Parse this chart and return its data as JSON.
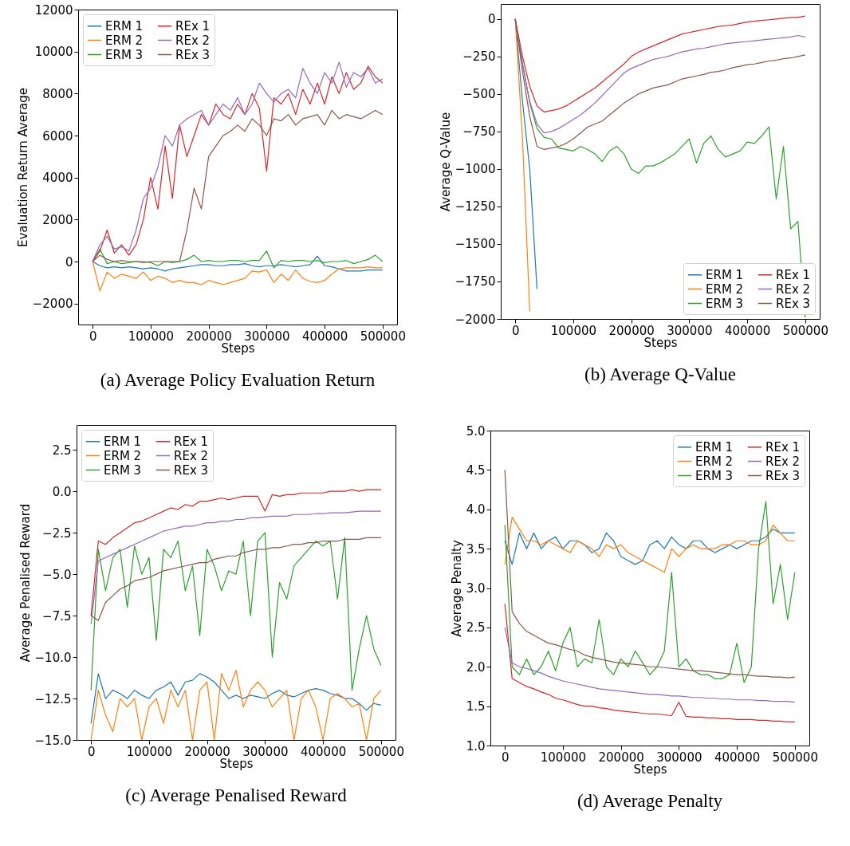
{
  "chart_data": [
    {
      "type": "line",
      "title": "(a) Average Policy Evaluation Return",
      "xlabel": "Steps",
      "ylabel": "Evaluation Return Average",
      "xlim": [
        -25000,
        525000
      ],
      "xticks": [
        0,
        100000,
        200000,
        300000,
        400000,
        500000
      ],
      "ylim": [
        -3000,
        12000
      ],
      "yticks": [
        -2000,
        0,
        2000,
        4000,
        6000,
        8000,
        10000,
        12000
      ],
      "legend": "top left",
      "x": [
        0,
        12500,
        25000,
        37500,
        50000,
        62500,
        75000,
        87500,
        100000,
        112500,
        125000,
        137500,
        150000,
        162500,
        175000,
        187500,
        200000,
        212500,
        225000,
        237500,
        250000,
        262500,
        275000,
        287500,
        300000,
        312500,
        325000,
        337500,
        350000,
        362500,
        375000,
        387500,
        400000,
        412500,
        425000,
        437500,
        450000,
        462500,
        475000,
        487500,
        500000
      ],
      "series": [
        {
          "name": "ERM 1",
          "color": "#1f77b4",
          "values": [
            0,
            -200,
            -300,
            -250,
            -300,
            -250,
            -300,
            -350,
            -300,
            -350,
            -450,
            -350,
            -300,
            -250,
            -200,
            -150,
            -150,
            -200,
            -200,
            -150,
            -150,
            -100,
            -200,
            -250,
            -200,
            -200,
            -150,
            -200,
            -250,
            -200,
            -150,
            250,
            -200,
            -250,
            -350,
            -450,
            -450,
            -450,
            -400,
            -400,
            -400
          ]
        },
        {
          "name": "ERM 2",
          "color": "#ff7f0e",
          "values": [
            0,
            -1400,
            -500,
            -800,
            -600,
            -700,
            -800,
            -500,
            -900,
            -700,
            -800,
            -1000,
            -900,
            -1000,
            -1000,
            -1100,
            -900,
            -1000,
            -1100,
            -1000,
            -900,
            -800,
            -450,
            -500,
            -400,
            -1000,
            -600,
            -900,
            -400,
            -800,
            -950,
            -1000,
            -900,
            -600,
            -350,
            -300,
            -300,
            -300,
            -250,
            -300,
            -300
          ]
        },
        {
          "name": "ERM 3",
          "color": "#2ca02c",
          "values": [
            0,
            600,
            -100,
            0,
            -100,
            -50,
            0,
            0,
            -50,
            -200,
            0,
            -50,
            0,
            100,
            300,
            0,
            50,
            0,
            0,
            50,
            50,
            0,
            50,
            50,
            500,
            -300,
            50,
            0,
            50,
            50,
            0,
            50,
            -50,
            0,
            0,
            50,
            -100,
            0,
            100,
            300,
            0
          ]
        },
        {
          "name": "REx 1",
          "color": "#d62728",
          "values": [
            0,
            500,
            1500,
            400,
            800,
            300,
            800,
            2000,
            4000,
            2500,
            5500,
            3000,
            6500,
            5000,
            6000,
            7000,
            6500,
            7500,
            7000,
            6800,
            7500,
            7000,
            8000,
            7300,
            4300,
            7800,
            7500,
            8000,
            7000,
            8200,
            7500,
            8500,
            7500,
            8800,
            8000,
            9000,
            8200,
            8500,
            9300,
            8800,
            8500
          ]
        },
        {
          "name": "REx 2",
          "color": "#9467bd",
          "values": [
            0,
            800,
            1200,
            600,
            700,
            500,
            1500,
            3000,
            3500,
            4500,
            6000,
            5500,
            6500,
            6800,
            7000,
            7200,
            6500,
            7000,
            7500,
            7200,
            7800,
            7000,
            7500,
            8500,
            8000,
            7600,
            8000,
            8200,
            7800,
            9200,
            8500,
            8000,
            9000,
            8500,
            9500,
            8300,
            9000,
            8800,
            9200,
            8500,
            8700
          ]
        },
        {
          "name": "REx 3",
          "color": "#8c564b",
          "values": [
            0,
            300,
            100,
            0,
            50,
            0,
            0,
            -50,
            0,
            0,
            0,
            0,
            0,
            1500,
            3500,
            2500,
            5000,
            5500,
            6000,
            6200,
            6500,
            6200,
            6800,
            6500,
            6000,
            6800,
            6700,
            7000,
            6500,
            6800,
            6900,
            7000,
            6500,
            7200,
            6800,
            7000,
            6900,
            6800,
            7000,
            7200,
            7000
          ]
        }
      ]
    },
    {
      "type": "line",
      "title": "(b) Average Q-Value",
      "xlabel": "Steps",
      "ylabel": "Average Q-Value",
      "xlim": [
        -25000,
        525000
      ],
      "xticks": [
        0,
        100000,
        200000,
        300000,
        400000,
        500000
      ],
      "ylim": [
        -2000,
        100
      ],
      "yticks": [
        -2000,
        -1750,
        -1500,
        -1250,
        -1000,
        -750,
        -500,
        -250,
        0
      ],
      "legend": "bottom right",
      "x": [
        0,
        12500,
        25000,
        37500,
        50000,
        62500,
        75000,
        87500,
        100000,
        112500,
        125000,
        137500,
        150000,
        162500,
        175000,
        187500,
        200000,
        212500,
        225000,
        237500,
        250000,
        262500,
        275000,
        287500,
        300000,
        312500,
        325000,
        337500,
        350000,
        362500,
        375000,
        387500,
        400000,
        412500,
        425000,
        437500,
        450000,
        462500,
        475000,
        487500,
        500000
      ],
      "series": [
        {
          "name": "ERM 1",
          "color": "#1f77b4",
          "values": [
            0,
            -550,
            -1000,
            -1800,
            null,
            null,
            null,
            null,
            null,
            null,
            null,
            null,
            null,
            null,
            null,
            null,
            null,
            null,
            null,
            null,
            null,
            null,
            null,
            null,
            null,
            null,
            null,
            null,
            null,
            null,
            null,
            null,
            null,
            null,
            null,
            null,
            null,
            null,
            null,
            null,
            null
          ]
        },
        {
          "name": "ERM 2",
          "color": "#ff7f0e",
          "values": [
            0,
            -800,
            -1950,
            null,
            null,
            null,
            null,
            null,
            null,
            null,
            null,
            null,
            null,
            null,
            null,
            null,
            null,
            null,
            null,
            null,
            null,
            null,
            null,
            null,
            null,
            null,
            null,
            null,
            null,
            null,
            null,
            null,
            null,
            null,
            null,
            null,
            null,
            null,
            null,
            null,
            null
          ]
        },
        {
          "name": "ERM 3",
          "color": "#2ca02c",
          "values": [
            0,
            -300,
            -560,
            -730,
            -790,
            -800,
            -860,
            -870,
            -880,
            -850,
            -870,
            -900,
            -950,
            -880,
            -850,
            -900,
            -1000,
            -1030,
            -980,
            -980,
            -960,
            -930,
            -900,
            -850,
            -800,
            -960,
            -830,
            -780,
            -870,
            -920,
            -900,
            -880,
            -820,
            -830,
            -780,
            -720,
            -1200,
            -850,
            -1400,
            -1350,
            -1990
          ]
        },
        {
          "name": "REx 1",
          "color": "#d62728",
          "values": [
            0,
            -250,
            -450,
            -580,
            -620,
            -610,
            -600,
            -580,
            -550,
            -520,
            -490,
            -460,
            -420,
            -380,
            -340,
            -300,
            -250,
            -220,
            -200,
            -180,
            -160,
            -140,
            -120,
            -100,
            -90,
            -80,
            -70,
            -60,
            -50,
            -45,
            -40,
            -30,
            -20,
            -15,
            -10,
            -5,
            0,
            5,
            10,
            10,
            20
          ]
        },
        {
          "name": "REx 2",
          "color": "#9467bd",
          "values": [
            0,
            -300,
            -550,
            -700,
            -760,
            -750,
            -730,
            -700,
            -670,
            -640,
            -600,
            -560,
            -510,
            -460,
            -410,
            -360,
            -330,
            -310,
            -290,
            -270,
            -260,
            -250,
            -235,
            -220,
            -210,
            -200,
            -195,
            -185,
            -175,
            -165,
            -160,
            -155,
            -150,
            -145,
            -140,
            -135,
            -130,
            -125,
            -120,
            -110,
            -120
          ]
        },
        {
          "name": "REx 3",
          "color": "#8c564b",
          "values": [
            0,
            -350,
            -650,
            -850,
            -870,
            -860,
            -850,
            -830,
            -800,
            -760,
            -720,
            -700,
            -680,
            -640,
            -600,
            -560,
            -530,
            -500,
            -480,
            -460,
            -450,
            -440,
            -420,
            -400,
            -390,
            -380,
            -370,
            -355,
            -350,
            -340,
            -325,
            -315,
            -305,
            -300,
            -290,
            -280,
            -275,
            -265,
            -260,
            -250,
            -240
          ]
        }
      ]
    },
    {
      "type": "line",
      "title": "(c) Average Penalised Reward",
      "xlabel": "Steps",
      "ylabel": "Average Penalised Reward",
      "xlim": [
        -25000,
        525000
      ],
      "xticks": [
        0,
        100000,
        200000,
        300000,
        400000,
        500000
      ],
      "ylim": [
        -15,
        4
      ],
      "yticks": [
        {
          "value": -15,
          "label": "−15.0"
        },
        -12.5,
        {
          "value": -10,
          "label": "−10.0"
        },
        -7.5,
        {
          "value": -5,
          "label": "−5.0"
        },
        -2.5,
        {
          "value": 0,
          "label": "0.0"
        },
        2.5
      ],
      "legend": "top left",
      "x": [
        0,
        12500,
        25000,
        37500,
        50000,
        62500,
        75000,
        87500,
        100000,
        112500,
        125000,
        137500,
        150000,
        162500,
        175000,
        187500,
        200000,
        212500,
        225000,
        237500,
        250000,
        262500,
        275000,
        287500,
        300000,
        312500,
        325000,
        337500,
        350000,
        362500,
        375000,
        387500,
        400000,
        412500,
        425000,
        437500,
        450000,
        462500,
        475000,
        487500,
        500000
      ],
      "series": [
        {
          "name": "ERM 1",
          "color": "#1f77b4",
          "values": [
            -14,
            -11,
            -12.5,
            -12,
            -12.2,
            -12.5,
            -12,
            -12.3,
            -12.5,
            -12,
            -11.8,
            -11.5,
            -12.3,
            -11.5,
            -11.4,
            -11,
            -11.2,
            -11.5,
            -12,
            -12.5,
            -12.3,
            -12.5,
            -12.3,
            -12.4,
            -12.5,
            -12.2,
            -12,
            -12.3,
            -12.4,
            -12.2,
            -12,
            -11.9,
            -12,
            -12.2,
            -12.3,
            -12.5,
            -12.5,
            -12.8,
            -13.2,
            -12.8,
            -12.9
          ]
        },
        {
          "name": "ERM 2",
          "color": "#ff7f0e",
          "values": [
            -15,
            -12,
            -13.5,
            -14.5,
            -12.5,
            -13,
            -12.5,
            -15,
            -13,
            -12.5,
            -14,
            -12,
            -13,
            -12,
            -15,
            -12,
            -11.5,
            -15,
            -11,
            -12,
            -10.8,
            -13,
            -12,
            -11.5,
            -12,
            -13,
            -12.5,
            -12,
            -15,
            -12.5,
            -12,
            -13,
            -15,
            -12.5,
            -12.2,
            -12.5,
            -13,
            -12.8,
            -15,
            -12.5,
            -12
          ]
        },
        {
          "name": "ERM 3",
          "color": "#2ca02c",
          "values": [
            -12,
            -3.5,
            -6,
            -4,
            -3.5,
            -7,
            -3.3,
            -5,
            -4,
            -9,
            -3.5,
            -4,
            -3,
            -6,
            -4.5,
            -8.7,
            -3.5,
            -4.5,
            -6,
            -4.8,
            -5,
            -3,
            -7.5,
            -3,
            -2.5,
            -10,
            -5.5,
            -6.5,
            -4.5,
            -4,
            -3.5,
            -3,
            -3.3,
            -3,
            -6.5,
            -2.8,
            -12,
            -9.5,
            -7.5,
            -9.5,
            -10.5
          ]
        },
        {
          "name": "REx 1",
          "color": "#d62728",
          "values": [
            -7.5,
            -3,
            -3.2,
            -2.8,
            -2.5,
            -2.2,
            -1.9,
            -1.8,
            -1.6,
            -1.4,
            -1.2,
            -1,
            -1.1,
            -0.8,
            -0.9,
            -0.6,
            -0.6,
            -0.5,
            -0.4,
            -0.5,
            -0.4,
            -0.3,
            -0.3,
            -0.3,
            -1.2,
            -0.2,
            -0.3,
            -0.2,
            -0.2,
            -0.1,
            -0.1,
            -0.1,
            -0.1,
            0,
            0,
            0,
            0.1,
            0,
            0.1,
            0.1,
            0.1
          ]
        },
        {
          "name": "REx 2",
          "color": "#9467bd",
          "values": [
            -8,
            -4.2,
            -4,
            -3.8,
            -3.6,
            -3.4,
            -3.2,
            -3,
            -2.8,
            -2.6,
            -2.4,
            -2.3,
            -2.2,
            -2.1,
            -2.1,
            -2,
            -1.9,
            -1.9,
            -1.8,
            -1.8,
            -1.7,
            -1.7,
            -1.6,
            -1.6,
            -1.55,
            -1.5,
            -1.5,
            -1.5,
            -1.4,
            -1.4,
            -1.4,
            -1.35,
            -1.35,
            -1.3,
            -1.3,
            -1.3,
            -1.25,
            -1.2,
            -1.2,
            -1.2,
            -1.2
          ]
        },
        {
          "name": "REx 3",
          "color": "#8c564b",
          "values": [
            -7.5,
            -7.8,
            -6.7,
            -6.3,
            -5.9,
            -5.7,
            -5.4,
            -5.3,
            -5.2,
            -5,
            -4.8,
            -4.7,
            -4.6,
            -4.5,
            -4.4,
            -4.3,
            -4.3,
            -4.1,
            -4,
            -3.9,
            -3.9,
            -3.7,
            -3.6,
            -3.5,
            -3.5,
            -3.4,
            -3.4,
            -3.3,
            -3.2,
            -3.2,
            -3.1,
            -3.1,
            -3,
            -3,
            -3,
            -2.9,
            -2.9,
            -2.9,
            -2.8,
            -2.8,
            -2.8
          ]
        }
      ]
    },
    {
      "type": "line",
      "title": "(d) Average Penalty",
      "xlabel": "Steps",
      "ylabel": "Average Penalty",
      "xlim": [
        -25000,
        525000
      ],
      "xticks": [
        0,
        100000,
        200000,
        300000,
        400000,
        500000
      ],
      "ylim": [
        1,
        5
      ],
      "yticks": [
        {
          "value": 1,
          "label": "1.0"
        },
        1.5,
        {
          "value": 2,
          "label": "2.0"
        },
        2.5,
        {
          "value": 3,
          "label": "3.0"
        },
        3.5,
        {
          "value": 4,
          "label": "4.0"
        },
        4.5,
        {
          "value": 5,
          "label": "5.0"
        }
      ],
      "legend": "top right",
      "x": [
        0,
        12500,
        25000,
        37500,
        50000,
        62500,
        75000,
        87500,
        100000,
        112500,
        125000,
        137500,
        150000,
        162500,
        175000,
        187500,
        200000,
        212500,
        225000,
        237500,
        250000,
        262500,
        275000,
        287500,
        300000,
        312500,
        325000,
        337500,
        350000,
        362500,
        375000,
        387500,
        400000,
        412500,
        425000,
        437500,
        450000,
        462500,
        475000,
        487500,
        500000
      ],
      "series": [
        {
          "name": "ERM 1",
          "color": "#1f77b4",
          "values": [
            3.6,
            3.3,
            3.7,
            3.5,
            3.7,
            3.5,
            3.6,
            3.65,
            3.5,
            3.6,
            3.6,
            3.55,
            3.45,
            3.5,
            3.7,
            3.6,
            3.4,
            3.35,
            3.3,
            3.35,
            3.55,
            3.6,
            3.5,
            3.65,
            3.55,
            3.5,
            3.6,
            3.6,
            3.5,
            3.45,
            3.5,
            3.55,
            3.5,
            3.55,
            3.6,
            3.6,
            3.65,
            3.75,
            3.7,
            3.7,
            3.7
          ]
        },
        {
          "name": "ERM 2",
          "color": "#ff7f0e",
          "values": [
            3.3,
            3.9,
            3.75,
            3.6,
            3.6,
            3.55,
            3.6,
            3.55,
            3.5,
            3.45,
            3.6,
            3.55,
            3.5,
            3.4,
            3.55,
            3.5,
            3.55,
            3.45,
            3.4,
            3.35,
            3.3,
            3.25,
            3.2,
            3.5,
            3.4,
            3.5,
            3.55,
            3.5,
            3.5,
            3.5,
            3.55,
            3.55,
            3.6,
            3.6,
            3.55,
            3.55,
            3.6,
            3.8,
            3.7,
            3.6,
            3.6
          ]
        },
        {
          "name": "ERM 3",
          "color": "#2ca02c",
          "values": [
            3.8,
            2,
            1.9,
            2.1,
            1.9,
            2,
            2.2,
            1.95,
            2.3,
            2.5,
            2,
            2.1,
            2.05,
            2.6,
            2,
            1.9,
            2.1,
            2,
            2.2,
            2.05,
            1.9,
            2,
            2.2,
            3.2,
            2,
            2.1,
            1.95,
            1.9,
            1.9,
            1.85,
            1.85,
            1.9,
            2.3,
            1.8,
            2,
            3.5,
            4.1,
            2.8,
            3.3,
            2.6,
            3.2
          ]
        },
        {
          "name": "REx 1",
          "color": "#d62728",
          "values": [
            2.8,
            1.85,
            1.8,
            1.75,
            1.72,
            1.68,
            1.65,
            1.6,
            1.58,
            1.55,
            1.52,
            1.5,
            1.5,
            1.48,
            1.47,
            1.45,
            1.44,
            1.43,
            1.42,
            1.41,
            1.4,
            1.4,
            1.39,
            1.38,
            1.55,
            1.37,
            1.36,
            1.36,
            1.35,
            1.35,
            1.34,
            1.34,
            1.33,
            1.33,
            1.33,
            1.32,
            1.32,
            1.31,
            1.31,
            1.3,
            1.3
          ]
        },
        {
          "name": "REx 2",
          "color": "#9467bd",
          "values": [
            2.5,
            2.05,
            2,
            1.98,
            1.95,
            1.92,
            1.88,
            1.85,
            1.82,
            1.8,
            1.78,
            1.76,
            1.74,
            1.72,
            1.71,
            1.7,
            1.69,
            1.68,
            1.67,
            1.66,
            1.65,
            1.65,
            1.64,
            1.63,
            1.63,
            1.62,
            1.61,
            1.61,
            1.6,
            1.6,
            1.59,
            1.59,
            1.58,
            1.58,
            1.58,
            1.57,
            1.57,
            1.56,
            1.56,
            1.56,
            1.55
          ]
        },
        {
          "name": "REx 3",
          "color": "#8c564b",
          "values": [
            4.5,
            2.7,
            2.55,
            2.45,
            2.4,
            2.35,
            2.3,
            2.28,
            2.25,
            2.22,
            2.2,
            2.15,
            2.12,
            2.1,
            2.08,
            2.06,
            2.05,
            2.04,
            2.03,
            2.02,
            2,
            2,
            1.99,
            1.98,
            1.97,
            1.96,
            1.95,
            1.95,
            1.94,
            1.93,
            1.92,
            1.91,
            1.9,
            1.9,
            1.89,
            1.88,
            1.88,
            1.87,
            1.87,
            1.86,
            1.87
          ]
        }
      ]
    }
  ]
}
